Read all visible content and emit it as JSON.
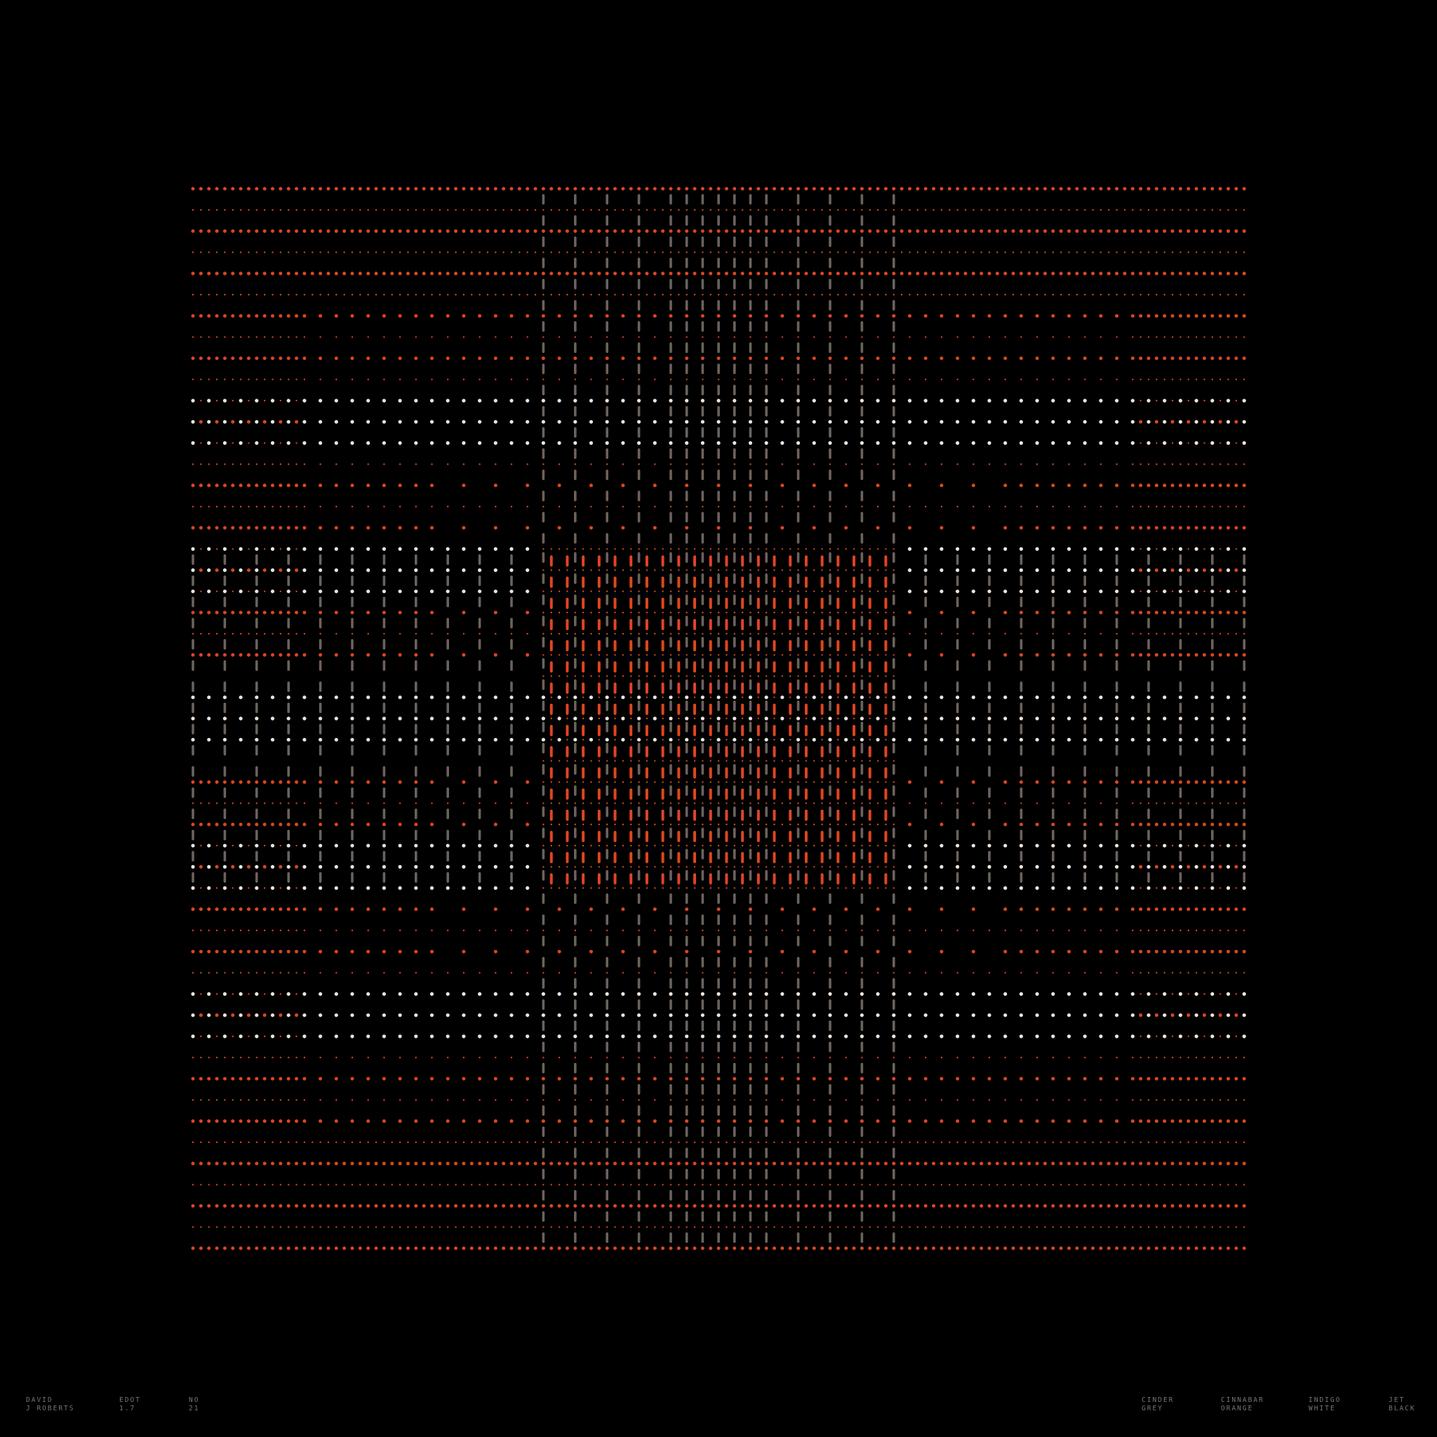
{
  "credits": {
    "artist": [
      "DAVID",
      "J ROBERTS"
    ],
    "series": [
      "EDOT",
      "1.7"
    ],
    "number": [
      "NO",
      "21"
    ]
  },
  "palette": [
    {
      "name": [
        "CINDER",
        "GREY"
      ],
      "hex": "#6b625c"
    },
    {
      "name": [
        "CINNABAR",
        "ORANGE"
      ],
      "hex": "#de4520"
    },
    {
      "name": [
        "INDIGO",
        "WHITE"
      ],
      "hex": "#e9e5df"
    },
    {
      "name": [
        "JET",
        "BLACK"
      ],
      "hex": "#000000"
    }
  ]
}
